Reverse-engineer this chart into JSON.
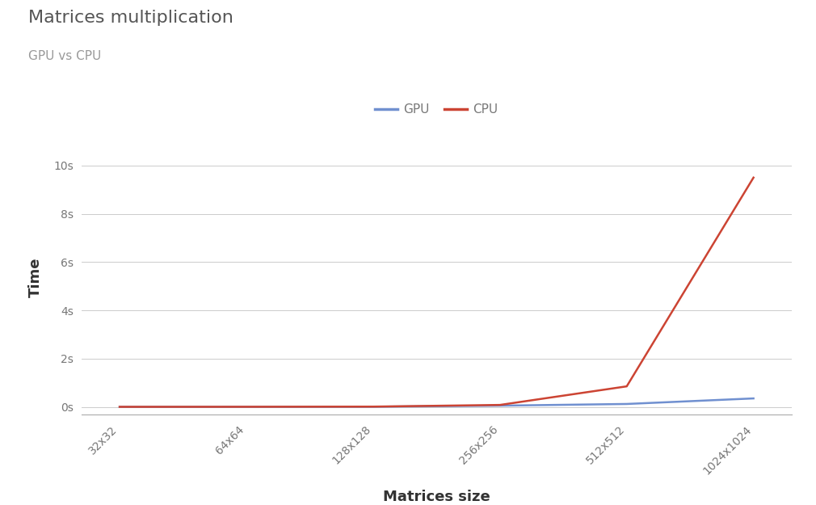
{
  "title": "Matrices multiplication",
  "subtitle": "GPU vs CPU",
  "xlabel": "Matrices size",
  "ylabel": "Time",
  "categories": [
    "32x32",
    "64x64",
    "128x128",
    "256x256",
    "512x512",
    "1024x1024"
  ],
  "gpu_values": [
    0.001,
    0.002,
    0.005,
    0.05,
    0.12,
    0.35
  ],
  "cpu_values": [
    0.001,
    0.003,
    0.01,
    0.08,
    0.85,
    9.5
  ],
  "gpu_color": "#7090d0",
  "cpu_color": "#cc4433",
  "background_color": "#ffffff",
  "grid_color": "#cccccc",
  "yticks": [
    0,
    2,
    4,
    6,
    8,
    10
  ],
  "ytick_labels": [
    "0s",
    "2s",
    "4s",
    "6s",
    "8s",
    "10s"
  ],
  "ylim": [
    -0.3,
    11.0
  ],
  "legend_labels": [
    "GPU",
    "CPU"
  ],
  "title_fontsize": 16,
  "subtitle_fontsize": 11,
  "axis_label_fontsize": 13,
  "tick_fontsize": 10,
  "legend_fontsize": 11,
  "line_width": 1.8,
  "title_color": "#555555",
  "subtitle_color": "#999999",
  "tick_color": "#777777",
  "axis_label_color": "#333333",
  "bottom_spine_color": "#aaaaaa"
}
